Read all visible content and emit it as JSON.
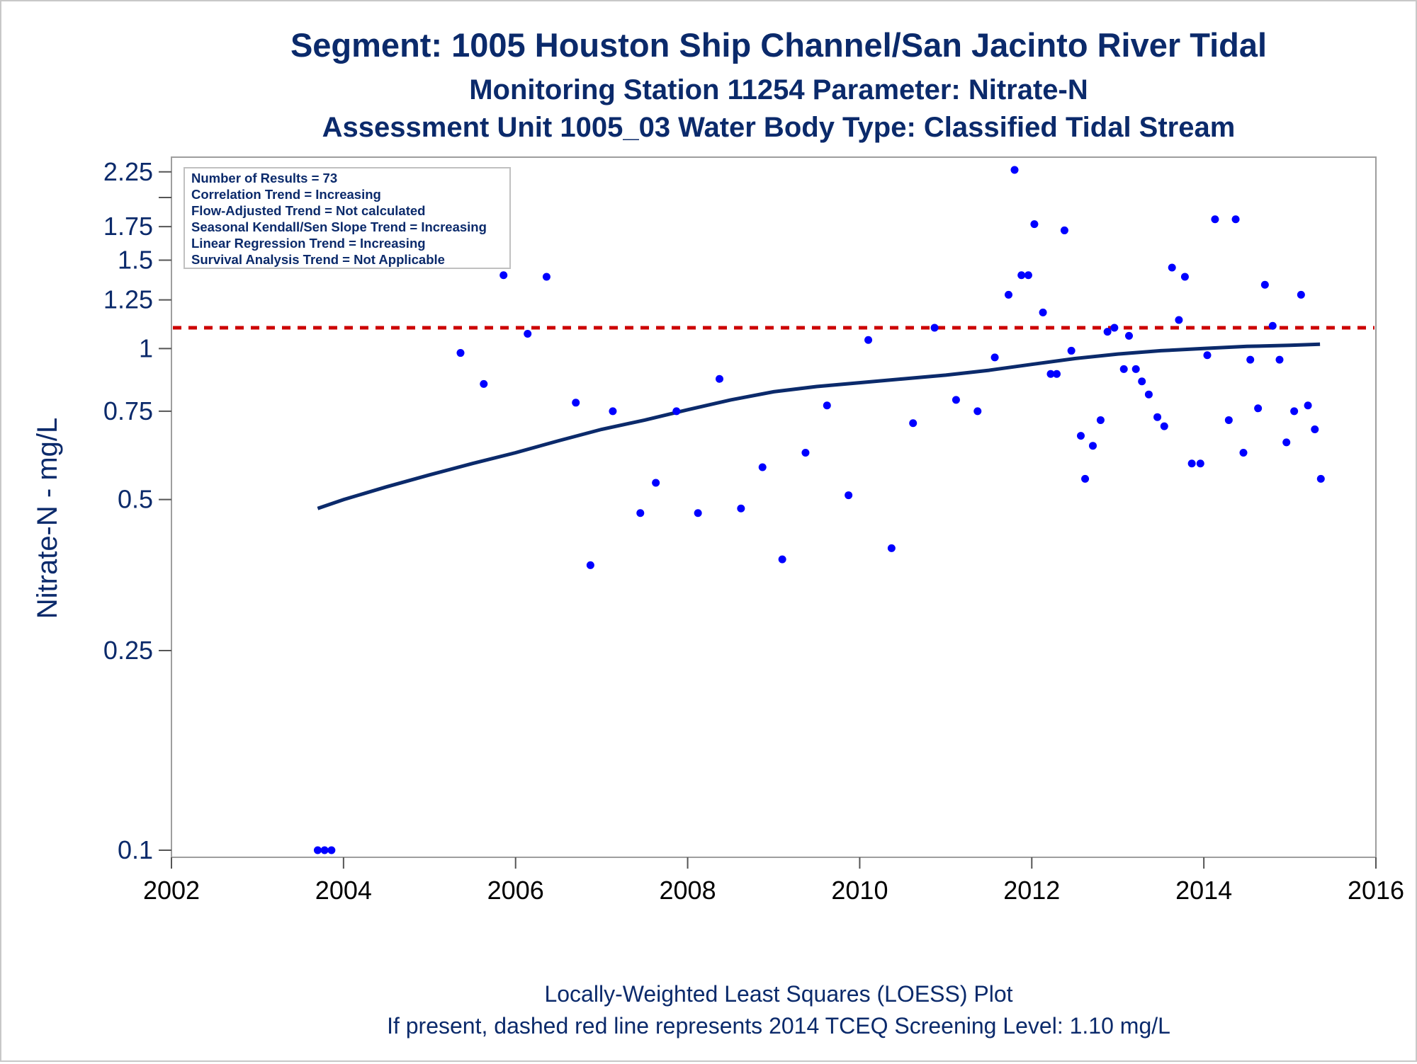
{
  "titles": {
    "line1": "Segment: 1005  Houston Ship Channel/San Jacinto River Tidal",
    "line2": "Monitoring Station 11254 Parameter: Nitrate-N",
    "line3": "Assessment Unit 1005_03   Water Body Type: Classified Tidal Stream"
  },
  "stats_box": [
    "Number of Results = 73",
    "Correlation Trend = Increasing",
    "Flow-Adjusted Trend = Not calculated",
    "Seasonal Kendall/Sen Slope Trend = Increasing",
    "Linear Regression Trend = Increasing",
    "Survival Analysis Trend = Not Applicable"
  ],
  "footer": {
    "line1": "Locally-Weighted Least Squares (LOESS) Plot",
    "line2": "If present, dashed red line represents 2014 TCEQ Screening Level: 1.10 mg/L"
  },
  "colors": {
    "text": "#0b2a6b",
    "points": "#0000ff",
    "loess": "#0b2a6b",
    "screening_line": "#cc0000",
    "frame": "#9e9e9e"
  },
  "chart_data": {
    "type": "scatter",
    "ylabel": "Nitrate-N - mg/L",
    "xlabel": "",
    "y_scale": "log",
    "xlim": [
      2002,
      2016
    ],
    "ylim": [
      0.1,
      2.3
    ],
    "x_ticks": [
      2002,
      2004,
      2006,
      2008,
      2010,
      2012,
      2014,
      2016
    ],
    "y_ticks": [
      {
        "value": 0.1,
        "label": "0.1"
      },
      {
        "value": 0.25,
        "label": "0.25"
      },
      {
        "value": 0.5,
        "label": "0.5"
      },
      {
        "value": 0.75,
        "label": "0.75"
      },
      {
        "value": 1,
        "label": "1"
      },
      {
        "value": 1.25,
        "label": "1.25"
      },
      {
        "value": 1.5,
        "label": "1.5"
      },
      {
        "value": 1.75,
        "label": "1.75"
      },
      {
        "value": 2.25,
        "label": "2.25"
      }
    ],
    "y_minor_ticks": [
      2.0
    ],
    "screening_level": 1.1,
    "grid": false,
    "points": [
      [
        2003.7,
        0.1
      ],
      [
        2003.78,
        0.1
      ],
      [
        2003.86,
        0.1
      ],
      [
        2005.36,
        0.98
      ],
      [
        2005.63,
        0.85
      ],
      [
        2005.86,
        1.4
      ],
      [
        2006.14,
        1.07
      ],
      [
        2006.36,
        1.39
      ],
      [
        2006.7,
        0.78
      ],
      [
        2006.87,
        0.37
      ],
      [
        2007.13,
        0.75
      ],
      [
        2007.45,
        0.47
      ],
      [
        2007.63,
        0.54
      ],
      [
        2007.87,
        0.75
      ],
      [
        2008.12,
        0.47
      ],
      [
        2008.37,
        0.87
      ],
      [
        2008.62,
        0.48
      ],
      [
        2008.87,
        0.58
      ],
      [
        2009.1,
        0.38
      ],
      [
        2009.37,
        0.62
      ],
      [
        2009.62,
        0.77
      ],
      [
        2009.87,
        0.51
      ],
      [
        2010.1,
        1.04
      ],
      [
        2010.37,
        0.4
      ],
      [
        2010.62,
        0.71
      ],
      [
        2010.87,
        1.1
      ],
      [
        2011.12,
        0.79
      ],
      [
        2011.37,
        0.75
      ],
      [
        2011.57,
        0.96
      ],
      [
        2011.73,
        1.28
      ],
      [
        2011.8,
        2.27
      ],
      [
        2011.88,
        1.4
      ],
      [
        2011.96,
        1.4
      ],
      [
        2012.03,
        1.77
      ],
      [
        2012.13,
        1.18
      ],
      [
        2012.22,
        0.89
      ],
      [
        2012.29,
        0.89
      ],
      [
        2012.38,
        1.72
      ],
      [
        2012.46,
        0.99
      ],
      [
        2012.57,
        0.67
      ],
      [
        2012.62,
        0.55
      ],
      [
        2012.71,
        0.64
      ],
      [
        2012.8,
        0.72
      ],
      [
        2012.88,
        1.08
      ],
      [
        2012.96,
        1.1
      ],
      [
        2013.07,
        0.91
      ],
      [
        2013.13,
        1.06
      ],
      [
        2013.21,
        0.91
      ],
      [
        2013.28,
        0.86
      ],
      [
        2013.36,
        0.81
      ],
      [
        2013.46,
        0.73
      ],
      [
        2013.54,
        0.7
      ],
      [
        2013.63,
        1.45
      ],
      [
        2013.71,
        1.14
      ],
      [
        2013.78,
        1.39
      ],
      [
        2013.86,
        0.59
      ],
      [
        2013.96,
        0.59
      ],
      [
        2014.04,
        0.97
      ],
      [
        2014.13,
        1.81
      ],
      [
        2014.29,
        0.72
      ],
      [
        2014.37,
        1.81
      ],
      [
        2014.46,
        0.62
      ],
      [
        2014.54,
        0.95
      ],
      [
        2014.63,
        0.76
      ],
      [
        2014.71,
        1.34
      ],
      [
        2014.8,
        1.11
      ],
      [
        2014.88,
        0.95
      ],
      [
        2014.96,
        0.65
      ],
      [
        2015.05,
        0.75
      ],
      [
        2015.13,
        1.28
      ],
      [
        2015.21,
        0.77
      ],
      [
        2015.29,
        0.69
      ],
      [
        2015.36,
        0.55
      ]
    ],
    "loess": [
      [
        2003.7,
        0.48
      ],
      [
        2004.0,
        0.5
      ],
      [
        2004.5,
        0.53
      ],
      [
        2005.0,
        0.56
      ],
      [
        2005.5,
        0.59
      ],
      [
        2006.0,
        0.62
      ],
      [
        2006.5,
        0.655
      ],
      [
        2007.0,
        0.69
      ],
      [
        2007.5,
        0.72
      ],
      [
        2008.0,
        0.755
      ],
      [
        2008.5,
        0.79
      ],
      [
        2009.0,
        0.82
      ],
      [
        2009.5,
        0.84
      ],
      [
        2010.0,
        0.855
      ],
      [
        2010.5,
        0.87
      ],
      [
        2011.0,
        0.885
      ],
      [
        2011.5,
        0.905
      ],
      [
        2012.0,
        0.93
      ],
      [
        2012.5,
        0.955
      ],
      [
        2013.0,
        0.975
      ],
      [
        2013.5,
        0.99
      ],
      [
        2014.0,
        1.0
      ],
      [
        2014.5,
        1.01
      ],
      [
        2015.0,
        1.015
      ],
      [
        2015.35,
        1.02
      ]
    ]
  }
}
